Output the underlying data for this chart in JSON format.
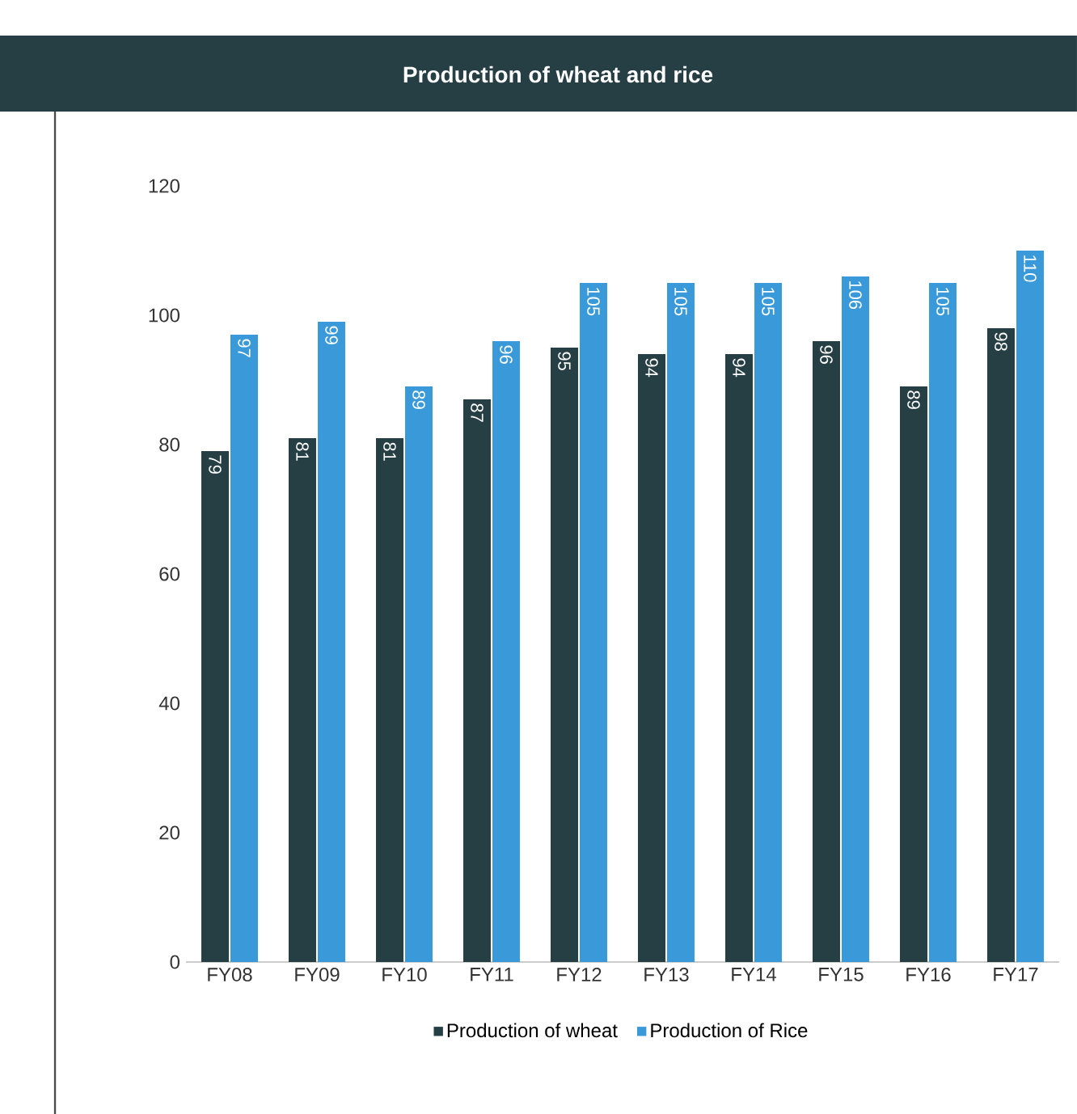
{
  "chart_data": {
    "type": "bar",
    "title": "Production of wheat and rice",
    "categories": [
      "FY08",
      "FY09",
      "FY10",
      "FY11",
      "FY12",
      "FY13",
      "FY14",
      "FY15",
      "FY16",
      "FY17"
    ],
    "series": [
      {
        "name": "Production of wheat",
        "color": "#263f45",
        "values": [
          79,
          81,
          81,
          87,
          95,
          94,
          94,
          96,
          89,
          98
        ]
      },
      {
        "name": "Production of Rice",
        "color": "#3a9ad9",
        "values": [
          97,
          99,
          89,
          96,
          105,
          105,
          105,
          106,
          105,
          110
        ]
      }
    ],
    "ylim": [
      0,
      120
    ],
    "yticks": [
      0,
      20,
      40,
      60,
      80,
      100,
      120
    ],
    "grid": false,
    "legend": "bottom",
    "data_labels": true
  }
}
